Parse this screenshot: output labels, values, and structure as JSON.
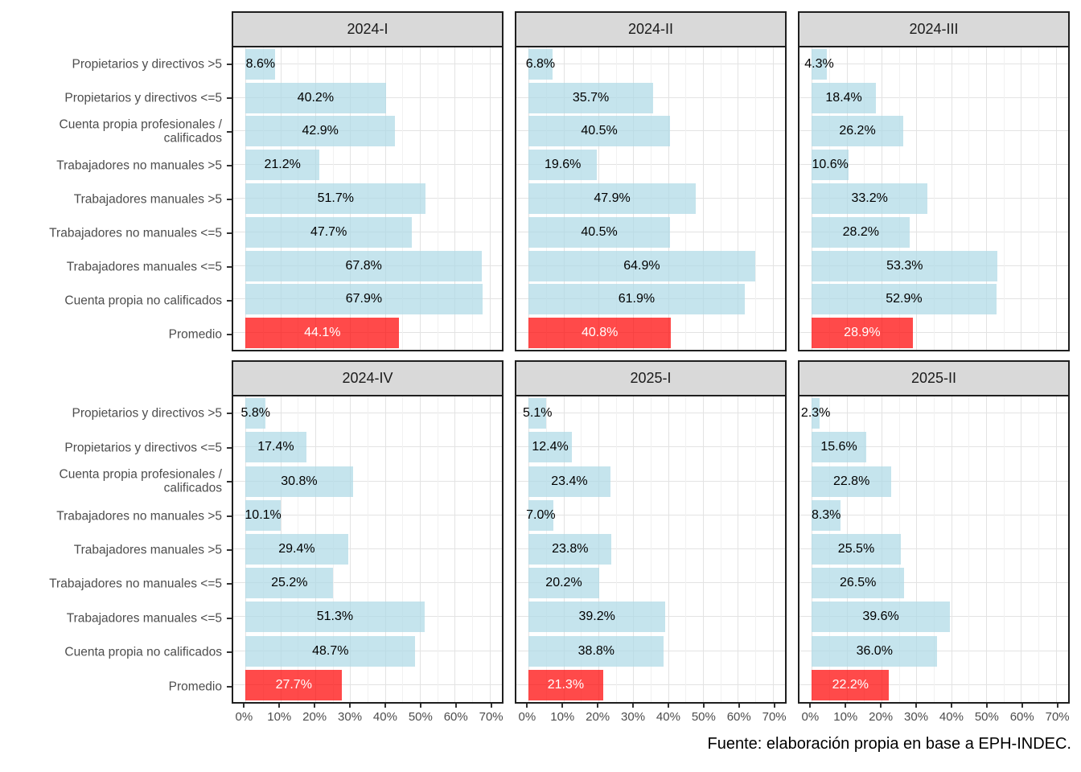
{
  "caption": "Fuente: elaboración propia en base a EPH-INDEC.",
  "chart_data": {
    "type": "bar",
    "orientation": "horizontal",
    "faceted": true,
    "categories": [
      "Propietarios y directivos >5",
      "Propietarios y directivos <=5",
      "Cuenta propia profesionales / calificados",
      "Trabajadores no manuales >5",
      "Trabajadores manuales >5",
      "Trabajadores no manuales <=5",
      "Trabajadores manuales <=5",
      "Cuenta propia no calificados",
      "Promedio"
    ],
    "highlight_category": "Promedio",
    "facets": [
      {
        "label": "2024-I",
        "values": [
          8.6,
          40.2,
          42.9,
          21.2,
          51.7,
          47.7,
          67.8,
          67.9,
          44.1
        ]
      },
      {
        "label": "2024-II",
        "values": [
          6.8,
          35.7,
          40.5,
          19.6,
          47.9,
          40.5,
          64.9,
          61.9,
          40.8
        ]
      },
      {
        "label": "2024-III",
        "values": [
          4.3,
          18.4,
          26.2,
          10.6,
          33.2,
          28.2,
          53.3,
          52.9,
          28.9
        ]
      },
      {
        "label": "2024-IV",
        "values": [
          5.8,
          17.4,
          30.8,
          10.1,
          29.4,
          25.2,
          51.3,
          48.7,
          27.7
        ]
      },
      {
        "label": "2025-I",
        "values": [
          5.1,
          12.4,
          23.4,
          7.0,
          23.8,
          20.2,
          39.2,
          38.8,
          21.3
        ]
      },
      {
        "label": "2025-II",
        "values": [
          2.3,
          15.6,
          22.8,
          8.3,
          25.5,
          26.5,
          39.6,
          36.0,
          22.2
        ]
      }
    ],
    "value_label_format": "one_decimal_percent",
    "xlim": [
      0,
      70
    ],
    "x_ticks": [
      0,
      10,
      20,
      30,
      40,
      50,
      60,
      70
    ],
    "x_tick_labels": [
      "0%",
      "10%",
      "20%",
      "30%",
      "40%",
      "50%",
      "60%",
      "70%"
    ],
    "x_minor_ticks": [
      5,
      15,
      25,
      35,
      45,
      55,
      65
    ],
    "grid": "major_and_minor_vertical_plus_category_horizontal",
    "legend": "none",
    "colors": {
      "bar_fill": "rgba(173,216,230,0.7)",
      "highlight_fill": "rgba(255,0,0,0.71)",
      "strip_background": "#D9D9D9",
      "panel_border": "#1F1F1F",
      "axis_text": "#4D4D4D",
      "grid_major": "#E3E3E3",
      "grid_minor": "#F1F1F1"
    },
    "caption": "Fuente: elaboración propia en base a EPH-INDEC."
  }
}
